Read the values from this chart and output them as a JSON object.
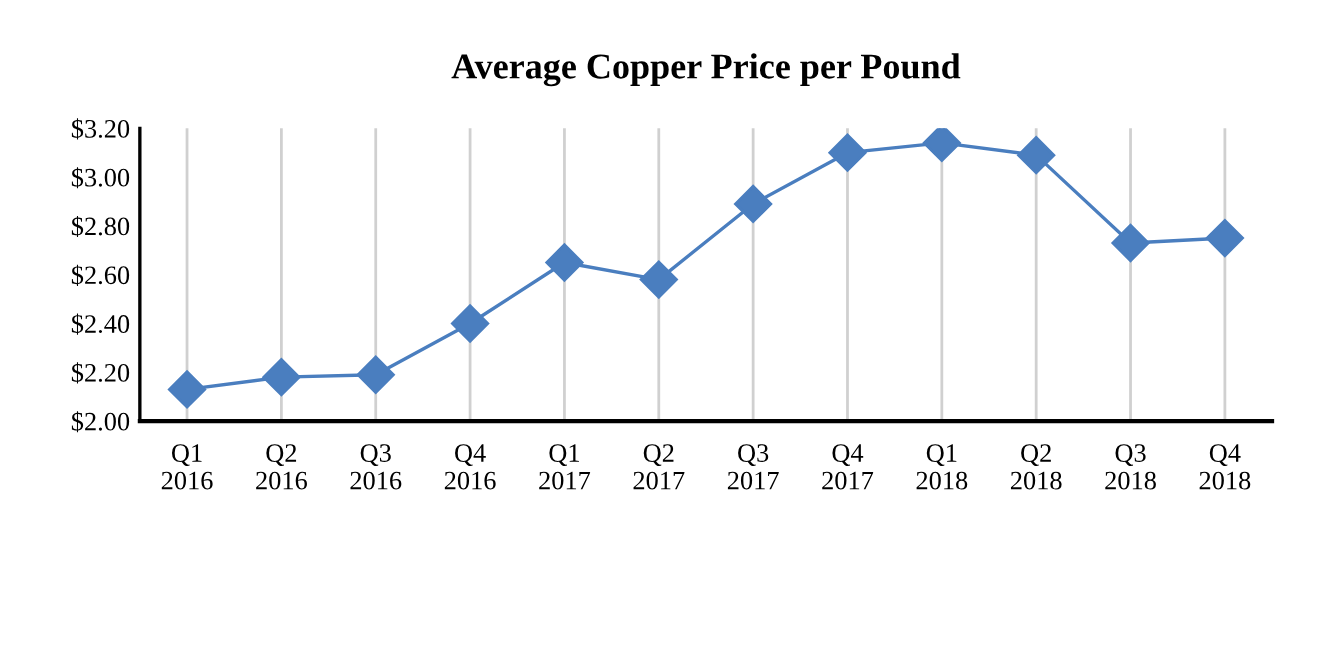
{
  "chart_data": {
    "type": "line",
    "title": "Average Copper Price per Pound",
    "categories": [
      "Q1\n2016",
      "Q2\n2016",
      "Q3\n2016",
      "Q4\n2016",
      "Q1\n2017",
      "Q2\n2017",
      "Q3\n2017",
      "Q4\n2017",
      "Q1\n2018",
      "Q2\n2018",
      "Q3\n2018",
      "Q4\n2018"
    ],
    "series": [
      {
        "color": "#4a7ebf",
        "values": [
          2.13,
          2.18,
          2.19,
          2.4,
          2.65,
          2.58,
          2.89,
          3.1,
          3.14,
          3.09,
          2.73,
          2.75
        ]
      }
    ],
    "ylim": [
      2.0,
      3.2
    ],
    "yticks": [
      {
        "value": 2.0,
        "label": "$2.00"
      },
      {
        "value": 2.2,
        "label": "$2.20"
      },
      {
        "value": 2.4,
        "label": "$2.40"
      },
      {
        "value": 2.6,
        "label": "$2.60"
      },
      {
        "value": 2.8,
        "label": "$2.80"
      },
      {
        "value": 3.0,
        "label": "$3.00"
      },
      {
        "value": 3.2,
        "label": "$3.20"
      }
    ],
    "grid": "x",
    "marker": "diamond",
    "line_style": "solid"
  }
}
